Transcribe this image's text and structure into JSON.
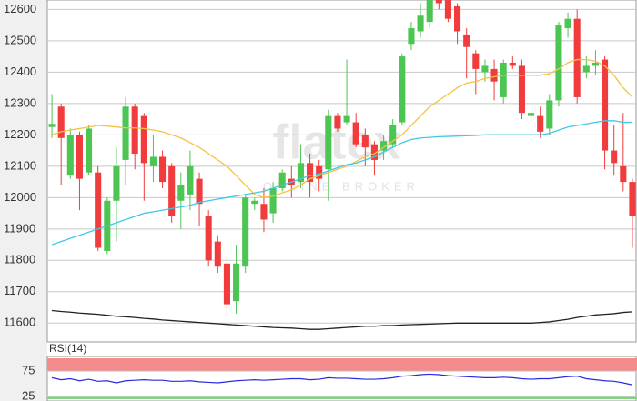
{
  "chart_data": [
    {
      "type": "candlestick",
      "watermark": "flatex",
      "watermark_subtitle": "ONLINE BROKER",
      "up_color": "#4cc552",
      "down_color": "#f03c3c",
      "open": [
        12225,
        12290,
        12070,
        12200,
        12080,
        12080,
        11830,
        11990,
        12120,
        12290,
        12260,
        12100,
        12130,
        12100,
        11990,
        12010,
        12060,
        11940,
        11860,
        11790,
        11670,
        11780,
        11980,
        11980,
        11950,
        12030,
        12060,
        12050,
        12110,
        12100,
        12090,
        12260,
        12240,
        12240,
        12200,
        12170,
        12150,
        12170,
        12240,
        12490,
        12530,
        12560,
        12640,
        12640,
        12610,
        12520,
        12460,
        12400,
        12410,
        12320,
        12430,
        12420,
        12260,
        12260,
        12220,
        12310,
        12540,
        12570,
        12400,
        12420,
        12440,
        12150,
        12100,
        12050
      ],
      "high": [
        12330,
        12300,
        12220,
        12210,
        12230,
        12100,
        12000,
        12160,
        12320,
        12300,
        12270,
        12200,
        12150,
        12110,
        12080,
        12150,
        12080,
        11960,
        11880,
        11820,
        11850,
        12010,
        12000,
        12030,
        12050,
        12090,
        12100,
        12170,
        12140,
        12120,
        12280,
        12270,
        12440,
        12270,
        12220,
        12180,
        12200,
        12250,
        12460,
        12560,
        12620,
        12640,
        12640,
        12650,
        12620,
        12540,
        12470,
        12440,
        12440,
        12440,
        12450,
        12440,
        12300,
        12290,
        12330,
        12560,
        12590,
        12600,
        12450,
        12470,
        12450,
        12230,
        12270,
        12060
      ],
      "low": [
        12190,
        12040,
        12060,
        11960,
        12070,
        11830,
        11820,
        11860,
        12040,
        12090,
        11990,
        12050,
        12030,
        11920,
        11900,
        11960,
        11910,
        11780,
        11760,
        11620,
        11630,
        11760,
        11960,
        11890,
        11920,
        12020,
        12000,
        12030,
        12000,
        12020,
        11990,
        12210,
        12230,
        12160,
        12100,
        12070,
        12120,
        12160,
        12230,
        12470,
        12510,
        12540,
        12600,
        12560,
        12490,
        12380,
        12330,
        12370,
        12310,
        12300,
        12410,
        12250,
        12240,
        12190,
        12200,
        12290,
        12510,
        12300,
        12380,
        12390,
        12090,
        12070,
        12020,
        11840
      ],
      "close": [
        12235,
        12190,
        12200,
        12060,
        12220,
        11840,
        11990,
        12100,
        12290,
        12140,
        12110,
        12130,
        12050,
        11940,
        12040,
        12100,
        11980,
        11800,
        11780,
        11660,
        11790,
        12000,
        11990,
        11930,
        12030,
        12080,
        12040,
        12110,
        12050,
        12060,
        12260,
        12220,
        12260,
        12170,
        12160,
        12120,
        12180,
        12230,
        12450,
        12540,
        12580,
        12640,
        12620,
        12570,
        12530,
        12480,
        12410,
        12420,
        12370,
        12430,
        12420,
        12270,
        12270,
        12210,
        12310,
        12550,
        12570,
        12320,
        12420,
        12430,
        12150,
        12110,
        12050,
        11940
      ],
      "lines": [
        {
          "color": "#f5c242",
          "values": [
            12200,
            12210,
            12215,
            12220,
            12225,
            12230,
            12228,
            12225,
            12222,
            12222,
            12220,
            12215,
            12210,
            12200,
            12190,
            12175,
            12160,
            12140,
            12120,
            12100,
            12070,
            12040,
            12010,
            12000,
            12005,
            12015,
            12025,
            12040,
            12060,
            12070,
            12080,
            12090,
            12100,
            12115,
            12130,
            12140,
            12160,
            12180,
            12200,
            12230,
            12260,
            12290,
            12310,
            12330,
            12350,
            12365,
            12370,
            12380,
            12385,
            12390,
            12390,
            12390,
            12390,
            12390,
            12395,
            12410,
            12430,
            12440,
            12440,
            12435,
            12420,
            12390,
            12350,
            12320
          ]
        },
        {
          "color": "#40c8e8",
          "values": [
            11850,
            11860,
            11870,
            11880,
            11890,
            11900,
            11910,
            11920,
            11930,
            11940,
            11950,
            11955,
            11960,
            11965,
            11970,
            11975,
            11985,
            11990,
            11995,
            12000,
            12005,
            12010,
            12015,
            12020,
            12030,
            12040,
            12050,
            12060,
            12070,
            12075,
            12085,
            12095,
            12105,
            12110,
            12120,
            12130,
            12145,
            12160,
            12175,
            12185,
            12190,
            12192,
            12194,
            12195,
            12196,
            12197,
            12198,
            12200,
            12200,
            12200,
            12200,
            12200,
            12200,
            12200,
            12205,
            12215,
            12225,
            12230,
            12235,
            12240,
            12245,
            12245,
            12240,
            12240
          ]
        },
        {
          "color": "#222222",
          "values": [
            11640,
            11637,
            11635,
            11632,
            11630,
            11628,
            11625,
            11622,
            11620,
            11618,
            11615,
            11613,
            11610,
            11608,
            11606,
            11604,
            11602,
            11600,
            11598,
            11596,
            11594,
            11592,
            11590,
            11588,
            11586,
            11585,
            11584,
            11582,
            11580,
            11580,
            11582,
            11584,
            11586,
            11588,
            11590,
            11590,
            11592,
            11592,
            11594,
            11595,
            11596,
            11597,
            11598,
            11599,
            11600,
            11600,
            11600,
            11600,
            11600,
            11600,
            11600,
            11600,
            11600,
            11602,
            11604,
            11608,
            11612,
            11618,
            11622,
            11626,
            11628,
            11630,
            11634,
            11636
          ]
        }
      ],
      "ylim": [
        11540,
        12630
      ],
      "yticks": [
        11600,
        11700,
        11800,
        11900,
        12000,
        12100,
        12200,
        12300,
        12400,
        12500,
        12600
      ],
      "grid": true
    },
    {
      "type": "line",
      "title": "RSI(14)",
      "color": "#2a2ae0",
      "values": [
        62,
        58,
        60,
        56,
        59,
        55,
        56,
        52,
        56,
        57,
        58,
        57,
        57,
        55,
        55,
        56,
        54,
        53,
        52,
        54,
        56,
        57,
        58,
        57,
        58,
        59,
        60,
        60,
        58,
        59,
        62,
        61,
        61,
        60,
        59,
        59,
        60,
        62,
        65,
        66,
        68,
        69,
        68,
        66,
        65,
        64,
        63,
        62,
        62,
        63,
        62,
        60,
        59,
        60,
        60,
        62,
        64,
        65,
        60,
        58,
        56,
        55,
        52,
        48
      ],
      "bands": [
        {
          "from": 75,
          "to": 100,
          "color": "#f28b8b"
        },
        {
          "from": 20,
          "to": 25,
          "color": "#7cd67c"
        }
      ],
      "ylim": [
        20,
        100
      ],
      "yticks": [
        25,
        75
      ],
      "grid": true
    }
  ]
}
